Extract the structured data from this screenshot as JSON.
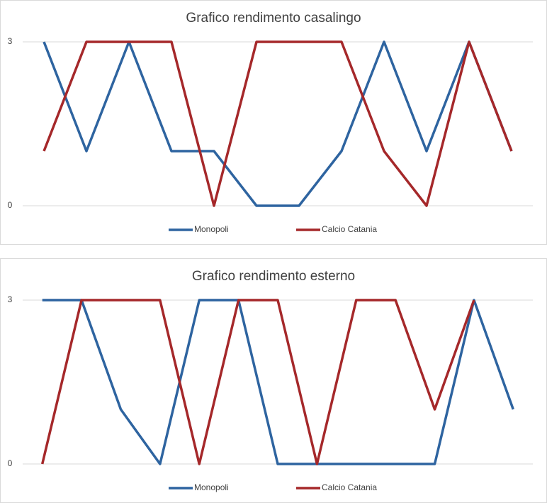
{
  "chart_data": [
    {
      "type": "line",
      "title": "Grafico rendimento casalingo",
      "categories": [
        null,
        null,
        null,
        null,
        null,
        null,
        null,
        null,
        null,
        null,
        null,
        null
      ],
      "series": [
        {
          "name": "Monopoli",
          "color": "#2e64a0",
          "values": [
            3,
            1,
            3,
            1,
            1,
            0,
            0,
            1,
            3,
            1,
            3,
            1
          ]
        },
        {
          "name": "Calcio Catania",
          "color": "#a5282a",
          "values": [
            1,
            3,
            3,
            3,
            0,
            3,
            3,
            3,
            1,
            0,
            3,
            1
          ]
        }
      ],
      "ylim": [
        0,
        3
      ],
      "yticks": [
        0,
        3
      ],
      "grid": true,
      "legend": "bottom"
    },
    {
      "type": "line",
      "title": "Grafico rendimento esterno",
      "categories": [
        null,
        null,
        null,
        null,
        null,
        null,
        null,
        null,
        null,
        null,
        null,
        null,
        null
      ],
      "series": [
        {
          "name": "Monopoli",
          "color": "#2e64a0",
          "values": [
            3,
            3,
            1,
            0,
            3,
            3,
            0,
            0,
            0,
            0,
            0,
            3,
            1
          ]
        },
        {
          "name": "Calcio Catania",
          "color": "#a5282a",
          "values": [
            0,
            3,
            3,
            3,
            0,
            3,
            3,
            0,
            3,
            3,
            1,
            3,
            null
          ]
        }
      ],
      "ylim": [
        0,
        3
      ],
      "yticks": [
        0,
        3
      ],
      "grid": true,
      "legend": "bottom"
    }
  ]
}
